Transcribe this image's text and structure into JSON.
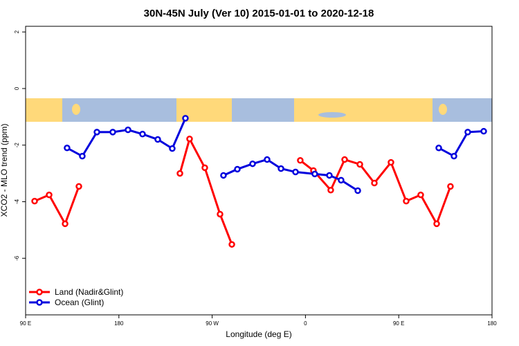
{
  "chart_data": {
    "type": "line",
    "title": "30N-45N July (Ver 10)   2015-01-01 to 2020-12-18",
    "x_label": "Longitude (deg E)",
    "y_label": "XCO2 - MLO trend (ppm)",
    "xlim": [
      90,
      540
    ],
    "xticks": [
      {
        "value": 90,
        "label": "90 E"
      },
      {
        "value": 180,
        "label": "180"
      },
      {
        "value": 270,
        "label": "90 W"
      },
      {
        "value": 360,
        "label": "0"
      },
      {
        "value": 450,
        "label": "90 E"
      },
      {
        "value": 540,
        "label": "180"
      }
    ],
    "ylim": [
      -8,
      2.2
    ],
    "yticks": [
      -6,
      -4,
      -2,
      0,
      2
    ],
    "legend": "bottom-left",
    "series": [
      {
        "name": "Land (Nadir&Glint)",
        "color": "#ff0000",
        "x": [
          98.7,
          112.7,
          128.1,
          141.4,
          null,
          238.9,
          248.2,
          262.9,
          277.6,
          289,
          null,
          355,
          367.7,
          384.4,
          397.8,
          412.5,
          426.5,
          442.5,
          457.2,
          471.2,
          486.6,
          499.9
        ],
        "values": [
          -3.98,
          -3.76,
          -4.78,
          -3.46,
          null,
          -3.0,
          -1.78,
          -2.8,
          -4.44,
          -5.51,
          null,
          -2.54,
          -2.9,
          -3.59,
          -2.51,
          -2.68,
          -3.34,
          -2.61,
          -3.98,
          -3.76,
          -4.78,
          -3.46
        ]
      },
      {
        "name": "Ocean (Glint)",
        "color": "#0000dd",
        "x": [
          130,
          144.7,
          158.8,
          174.1,
          188.8,
          202.8,
          217.5,
          231.5,
          244.2,
          null,
          280.9,
          294.3,
          309,
          323,
          336.4,
          350.4,
          369,
          383.1,
          394.4,
          410.5,
          null,
          488.6,
          503.3,
          516.6,
          532
        ],
        "values": [
          -2.1,
          -2.39,
          -1.54,
          -1.54,
          -1.46,
          -1.61,
          -1.8,
          -2.12,
          -1.05,
          null,
          -3.07,
          -2.85,
          -2.66,
          -2.51,
          -2.83,
          -2.95,
          -3.02,
          -3.07,
          -3.24,
          -3.61,
          null,
          -2.1,
          -2.39,
          -1.54,
          -1.51
        ]
      }
    ]
  }
}
